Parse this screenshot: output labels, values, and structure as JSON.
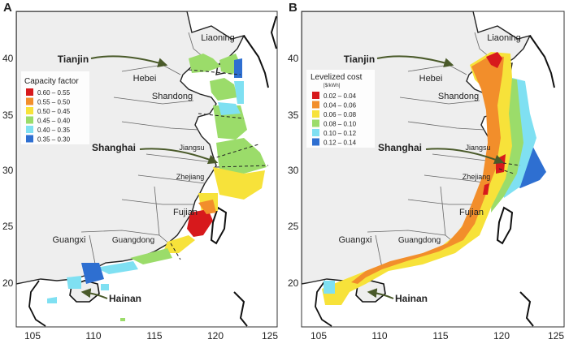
{
  "panels": [
    {
      "letter": "A",
      "legend": {
        "title": "Capacity factor",
        "unit": "",
        "items": [
          {
            "label": "0.60 – 0.55",
            "color": "#d7191c"
          },
          {
            "label": "0.55 – 0.50",
            "color": "#f28e2b"
          },
          {
            "label": "0.50 – 0.45",
            "color": "#f7e23a"
          },
          {
            "label": "0.45 – 0.40",
            "color": "#9bdc6a"
          },
          {
            "label": "0.40 – 0.35",
            "color": "#7fe0f2"
          },
          {
            "label": "0.35 – 0.30",
            "color": "#2e6fd1"
          }
        ]
      }
    },
    {
      "letter": "B",
      "legend": {
        "title": "Levelized cost",
        "unit": "[$/kWh]",
        "items": [
          {
            "label": "0.02 – 0.04",
            "color": "#d7191c"
          },
          {
            "label": "0.04 – 0.06",
            "color": "#f28e2b"
          },
          {
            "label": "0.06 – 0.08",
            "color": "#f7e23a"
          },
          {
            "label": "0.08 – 0.10",
            "color": "#9bdc6a"
          },
          {
            "label": "0.10 – 0.12",
            "color": "#7fe0f2"
          },
          {
            "label": "0.12 – 0.14",
            "color": "#2e6fd1"
          }
        ]
      }
    }
  ],
  "axes": {
    "x_ticks": [
      "105",
      "110",
      "115",
      "120",
      "125"
    ],
    "y_ticks": [
      "40",
      "35",
      "30",
      "25",
      "20"
    ]
  },
  "provinces": [
    "Liaoning",
    "Hebei",
    "Shandong",
    "Jiangsu",
    "Zhejiang",
    "Fujian",
    "Guangdong",
    "Guangxi"
  ],
  "callouts": [
    "Tianjin",
    "Shanghai",
    "Hainan"
  ],
  "colors": {
    "land": "#eeeeee",
    "border": "#555555",
    "coast": "#111111",
    "arrow": "#4a5a2a"
  }
}
